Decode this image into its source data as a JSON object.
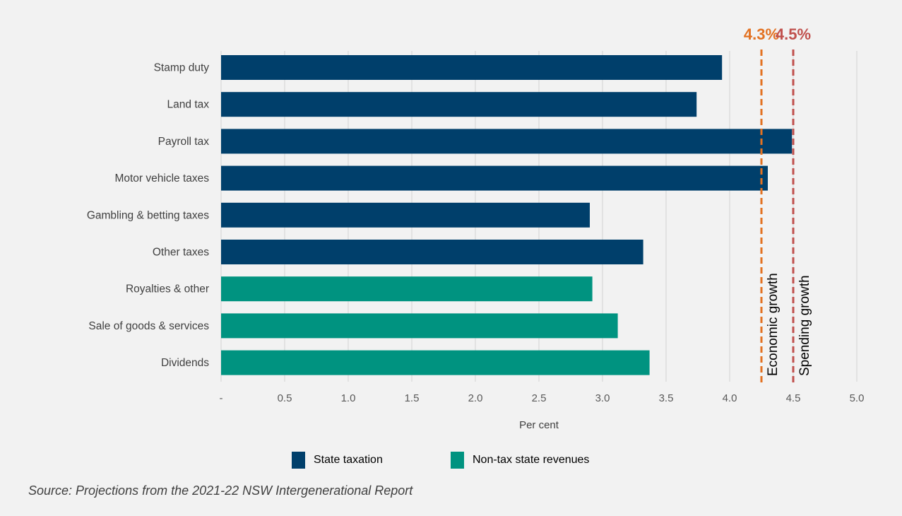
{
  "chart_data": {
    "type": "bar",
    "orientation": "horizontal",
    "categories": [
      "Stamp duty",
      "Land tax",
      "Payroll tax",
      "Motor vehicle taxes",
      "Gambling & betting taxes",
      "Other taxes",
      "Royalties & other",
      "Sale of goods & services",
      "Dividends"
    ],
    "values": [
      3.94,
      3.74,
      4.49,
      4.3,
      2.9,
      3.32,
      2.92,
      3.12,
      3.37
    ],
    "groups": [
      "tax",
      "tax",
      "tax",
      "tax",
      "tax",
      "tax",
      "nontax",
      "nontax",
      "nontax"
    ],
    "series": [
      {
        "name": "State taxation",
        "color": "#003f6b"
      },
      {
        "name": "Non-tax state revenues",
        "color": "#009380"
      }
    ],
    "xlabel": "Per cent",
    "xlim": [
      0,
      5.0
    ],
    "xticks": [
      "-",
      "0.5",
      "1.0",
      "1.5",
      "2.0",
      "2.5",
      "3.0",
      "3.5",
      "4.0",
      "4.5",
      "5.0"
    ],
    "grid": "vertical",
    "legend_position": "bottom",
    "reference_lines": [
      {
        "value": 4.25,
        "top_label": "4.3%",
        "label": "Economic growth",
        "color": "#e37222"
      },
      {
        "value": 4.5,
        "top_label": "4.5%",
        "label": "Spending growth",
        "color": "#c0504d"
      }
    ]
  },
  "source": "Source: Projections from the 2021-22 NSW Intergenerational Report"
}
